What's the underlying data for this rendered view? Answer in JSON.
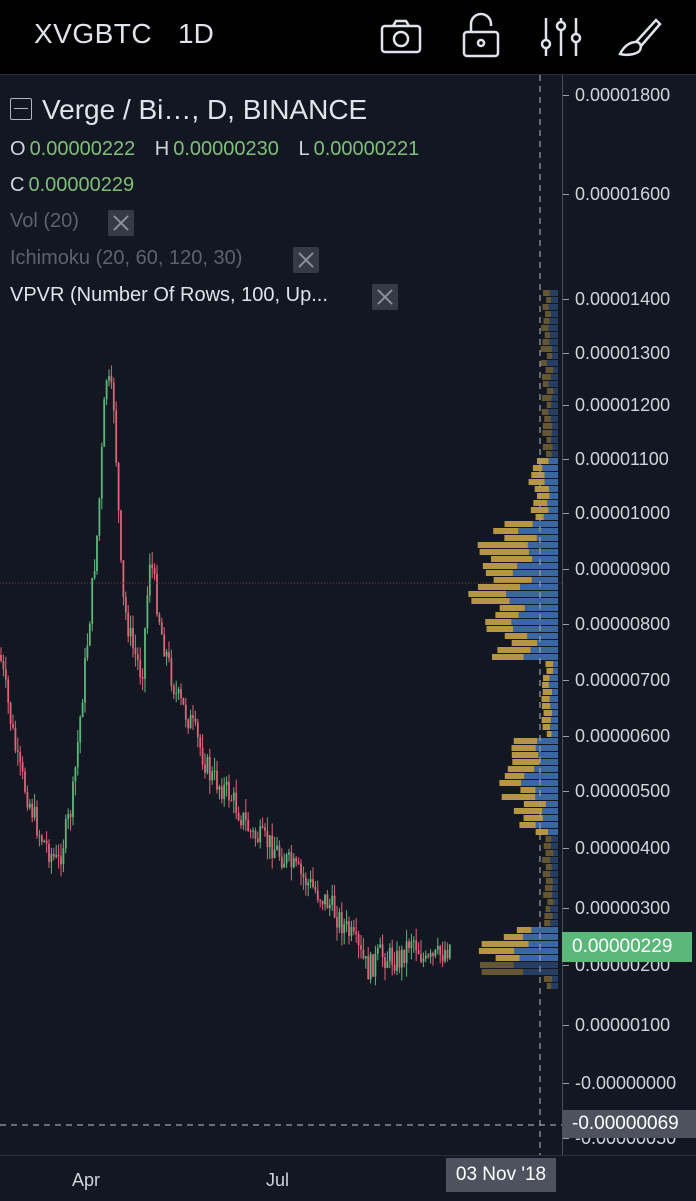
{
  "toolbar": {
    "symbol": "XVGBTC",
    "interval": "1D",
    "buttons": [
      "camera-icon",
      "unlock-icon",
      "settings-sliders-icon",
      "drawing-brush-icon"
    ]
  },
  "legend": {
    "title": "Verge / Bi…, D, BINANCE",
    "open_label": "O",
    "open": "0.00000222",
    "high_label": "H",
    "high": "0.00000230",
    "low_label": "L",
    "low": "0.00000221",
    "close_label": "C",
    "close": "0.00000229",
    "indicators": [
      {
        "label": "Vol (20)",
        "hidden": true
      },
      {
        "label": "Ichimoku (20, 60, 120, 30)",
        "hidden": true
      },
      {
        "label": "VPVR (Number Of Rows, 100, Up...",
        "hidden": false
      }
    ]
  },
  "price_scale": {
    "ticks": [
      "0.00001800",
      "0.00001600",
      "0.00001400",
      "0.00001300",
      "0.00001200",
      "0.00001100",
      "0.00001000",
      "0.00000900",
      "0.00000800",
      "0.00000700",
      "0.00000600",
      "0.00000500",
      "0.00000400",
      "0.00000300",
      "0.00000200",
      "0.00000100",
      "-0.00000000",
      "-0.00000050"
    ],
    "last_price": "0.00000229",
    "crosshair_price": "-0.00000069"
  },
  "time_axis": {
    "labels": [
      "Apr",
      "Jul"
    ],
    "crosshair_date": "03 Nov '18"
  },
  "colors": {
    "background": "#131722",
    "up": "#5cb87a",
    "down": "#e0637a",
    "vp_up": "#c9a349",
    "vp_down": "#3f6fb0"
  }
}
